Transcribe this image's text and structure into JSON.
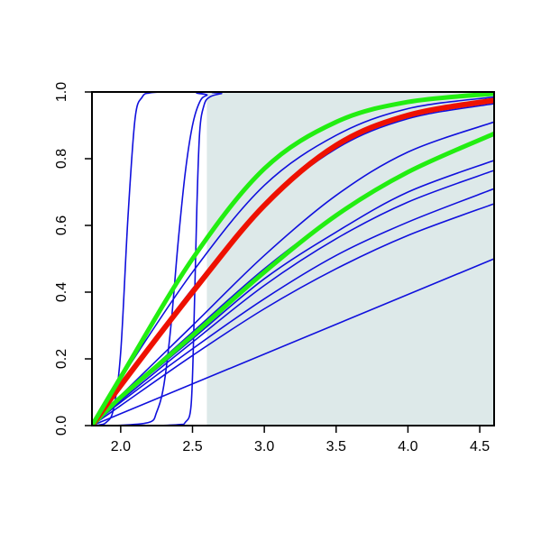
{
  "chart_data": {
    "type": "line",
    "title": "",
    "xlabel": "",
    "ylabel": "",
    "xlim": [
      1.8,
      4.6
    ],
    "ylim": [
      0.0,
      1.0
    ],
    "x_ticks": [
      2.0,
      2.5,
      3.0,
      3.5,
      4.0,
      4.5
    ],
    "x_tick_labels": [
      "2.0",
      "2.5",
      "3.0",
      "3.5",
      "4.0",
      "4.5"
    ],
    "y_ticks": [
      0.0,
      0.2,
      0.4,
      0.6,
      0.8,
      1.0
    ],
    "y_tick_labels": [
      "0.0",
      "0.2",
      "0.4",
      "0.6",
      "0.8",
      "1.0"
    ],
    "grid": false,
    "legend": "none",
    "shaded_region": {
      "x_from": 2.6,
      "x_to": 4.6,
      "y_from": 0.0,
      "y_to": 1.0,
      "color": "#dde9e9"
    },
    "colors": {
      "blue": "#1010dd",
      "red": "#ee1100",
      "green": "#22ee11"
    },
    "series": [
      {
        "color": "#1010dd",
        "width": 1.6,
        "x": [
          1.8,
          1.85,
          1.9,
          1.95,
          2.0,
          2.05,
          2.1,
          2.15,
          2.2,
          2.3,
          2.5,
          4.6
        ],
        "y": [
          0,
          0.002,
          0.01,
          0.05,
          0.22,
          0.62,
          0.92,
          0.985,
          0.997,
          1.0,
          1.0,
          1.0
        ]
      },
      {
        "color": "#1010dd",
        "width": 1.6,
        "x": [
          1.8,
          2.0,
          2.2,
          2.25,
          2.3,
          2.35,
          2.4,
          2.45,
          2.5,
          2.55,
          2.6,
          2.7,
          4.6
        ],
        "y": [
          0,
          0.001,
          0.01,
          0.04,
          0.12,
          0.3,
          0.55,
          0.76,
          0.9,
          0.97,
          0.99,
          1.0,
          1.0
        ]
      },
      {
        "color": "#1010dd",
        "width": 1.6,
        "x": [
          1.8,
          2.2,
          2.4,
          2.45,
          2.49,
          2.51,
          2.53,
          2.55,
          2.58,
          2.62,
          2.7,
          2.8,
          4.6
        ],
        "y": [
          0,
          0.0,
          0.003,
          0.01,
          0.06,
          0.3,
          0.65,
          0.88,
          0.96,
          0.985,
          0.995,
          1.0,
          1.0
        ]
      },
      {
        "color": "#1010dd",
        "width": 1.6,
        "x": [
          1.8,
          4.6
        ],
        "y": [
          0.0,
          0.5
        ]
      },
      {
        "color": "#1010dd",
        "width": 1.6,
        "x": [
          1.8,
          2.0,
          2.5,
          3.0,
          3.5,
          4.0,
          4.6
        ],
        "y": [
          0.0,
          0.06,
          0.21,
          0.35,
          0.47,
          0.57,
          0.665
        ]
      },
      {
        "color": "#1010dd",
        "width": 1.6,
        "x": [
          1.8,
          2.0,
          2.5,
          3.0,
          3.5,
          4.0,
          4.6
        ],
        "y": [
          0.0,
          0.07,
          0.23,
          0.38,
          0.51,
          0.61,
          0.71
        ]
      },
      {
        "color": "#1010dd",
        "width": 1.6,
        "x": [
          1.8,
          2.0,
          2.5,
          3.0,
          3.5,
          4.0,
          4.6
        ],
        "y": [
          0.0,
          0.075,
          0.25,
          0.42,
          0.56,
          0.67,
          0.765
        ]
      },
      {
        "color": "#1010dd",
        "width": 1.6,
        "x": [
          1.8,
          2.0,
          2.5,
          3.0,
          3.5,
          4.0,
          4.6
        ],
        "y": [
          0.0,
          0.08,
          0.26,
          0.44,
          0.58,
          0.7,
          0.795
        ]
      },
      {
        "color": "#1010dd",
        "width": 1.6,
        "x": [
          1.8,
          2.0,
          2.5,
          3.0,
          3.5,
          4.0,
          4.6
        ],
        "y": [
          0.0,
          0.085,
          0.28,
          0.47,
          0.63,
          0.76,
          0.87
        ]
      },
      {
        "color": "#1010dd",
        "width": 1.6,
        "x": [
          1.8,
          2.0,
          2.5,
          3.0,
          3.5,
          4.0,
          4.6
        ],
        "y": [
          0.0,
          0.09,
          0.3,
          0.51,
          0.69,
          0.82,
          0.91
        ]
      },
      {
        "color": "#1010dd",
        "width": 1.6,
        "x": [
          1.8,
          2.0,
          2.5,
          3.0,
          3.5,
          4.0,
          4.6
        ],
        "y": [
          0.0,
          0.12,
          0.41,
          0.66,
          0.83,
          0.92,
          0.965
        ]
      },
      {
        "color": "#1010dd",
        "width": 1.6,
        "x": [
          1.8,
          2.0,
          2.5,
          3.0,
          3.5,
          4.0,
          4.6
        ],
        "y": [
          0.0,
          0.14,
          0.46,
          0.72,
          0.87,
          0.95,
          0.985
        ]
      },
      {
        "color": "#22ee11",
        "width": 5,
        "x": [
          1.8,
          2.0,
          2.5,
          3.0,
          3.5,
          4.0,
          4.6
        ],
        "y": [
          0.0,
          0.085,
          0.27,
          0.46,
          0.63,
          0.76,
          0.875
        ]
      },
      {
        "color": "#ee1100",
        "width": 6,
        "x": [
          1.8,
          2.0,
          2.5,
          3.0,
          3.5,
          4.0,
          4.6
        ],
        "y": [
          0.0,
          0.12,
          0.4,
          0.66,
          0.84,
          0.93,
          0.975
        ]
      },
      {
        "color": "#22ee11",
        "width": 5,
        "x": [
          1.8,
          2.0,
          2.5,
          3.0,
          3.5,
          4.0,
          4.6
        ],
        "y": [
          0.0,
          0.145,
          0.5,
          0.77,
          0.91,
          0.97,
          0.995
        ]
      }
    ]
  }
}
